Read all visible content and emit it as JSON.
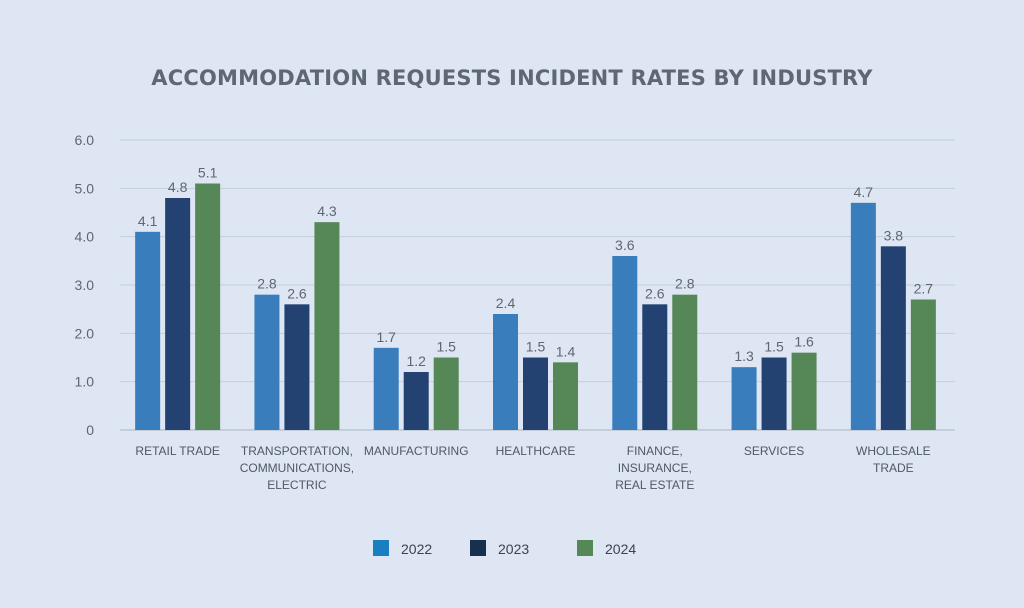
{
  "chart_data": {
    "type": "bar",
    "title": "ACCOMMODATION REQUESTS INCIDENT RATES BY INDUSTRY",
    "xlabel": "",
    "ylabel": "",
    "ylim": [
      0,
      6
    ],
    "yticks": [
      "0",
      "1.0",
      "2.0",
      "3.0",
      "4.0",
      "5.0",
      "6.0"
    ],
    "grid": true,
    "legend_position": "bottom",
    "categories": [
      [
        "RETAIL TRADE"
      ],
      [
        "TRANSPORTATION,",
        "COMMUNICATIONS,",
        "ELECTRIC"
      ],
      [
        "MANUFACTURING"
      ],
      [
        "HEALTHCARE"
      ],
      [
        "FINANCE,",
        "INSURANCE,",
        "REAL ESTATE"
      ],
      [
        "SERVICES"
      ],
      [
        "WHOLESALE",
        "TRADE"
      ]
    ],
    "series": [
      {
        "name": "2022",
        "color": "#3a7dbc",
        "legend_color": "#1a7fc1",
        "values": [
          4.1,
          2.8,
          1.7,
          2.4,
          3.6,
          1.3,
          4.7
        ]
      },
      {
        "name": "2023",
        "color": "#234272",
        "legend_color": "#182f4e",
        "values": [
          4.8,
          2.6,
          1.2,
          1.5,
          2.6,
          1.5,
          3.8
        ]
      },
      {
        "name": "2024",
        "color": "#568757",
        "legend_color": "#568757",
        "values": [
          5.1,
          4.3,
          1.5,
          1.4,
          2.8,
          1.6,
          2.7
        ]
      }
    ]
  }
}
